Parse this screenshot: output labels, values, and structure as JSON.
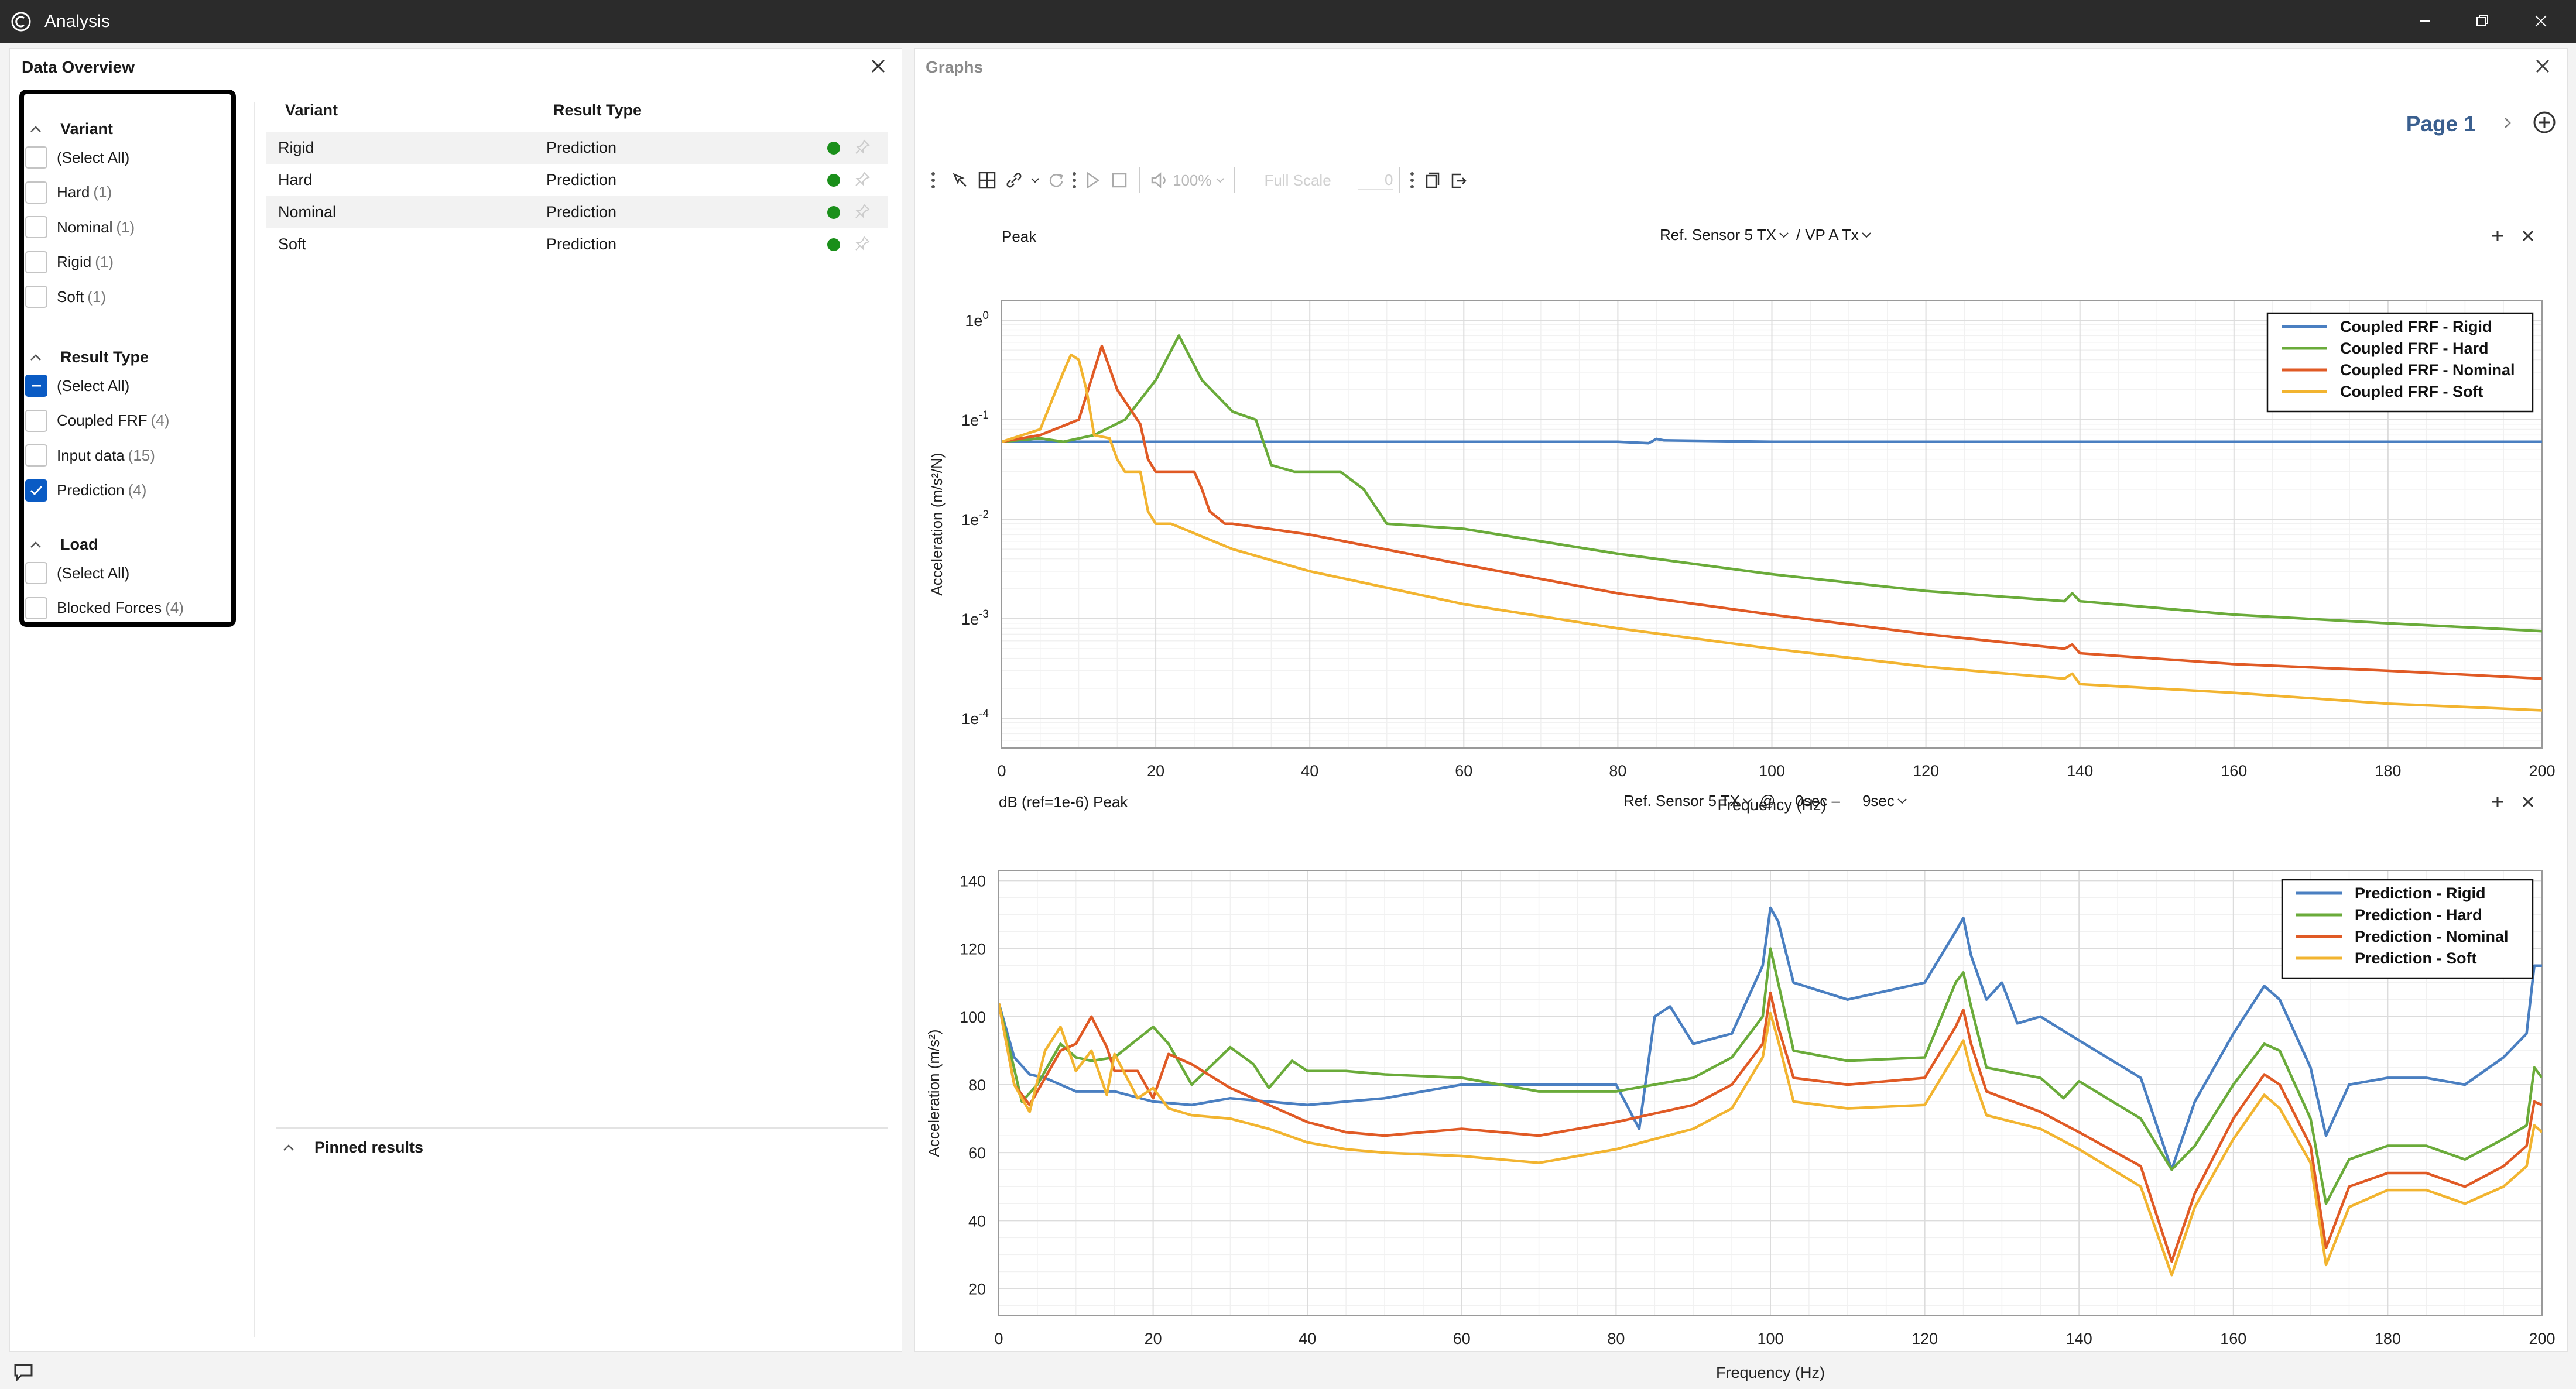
{
  "window": {
    "title": "Analysis"
  },
  "data_overview": {
    "title": "Data Overview",
    "sections": [
      {
        "title": "Variant",
        "items": [
          {
            "label": "(Select All)",
            "count": "",
            "state": "unchecked"
          },
          {
            "label": "Hard",
            "count": "(1)",
            "state": "unchecked"
          },
          {
            "label": "Nominal",
            "count": "(1)",
            "state": "unchecked"
          },
          {
            "label": "Rigid",
            "count": "(1)",
            "state": "unchecked"
          },
          {
            "label": "Soft",
            "count": "(1)",
            "state": "unchecked"
          }
        ]
      },
      {
        "title": "Result Type",
        "items": [
          {
            "label": "(Select All)",
            "count": "",
            "state": "partial"
          },
          {
            "label": "Coupled FRF",
            "count": "(4)",
            "state": "unchecked"
          },
          {
            "label": "Input data",
            "count": "(15)",
            "state": "unchecked"
          },
          {
            "label": "Prediction",
            "count": "(4)",
            "state": "checked"
          }
        ]
      },
      {
        "title": "Load",
        "items": [
          {
            "label": "(Select All)",
            "count": "",
            "state": "unchecked"
          },
          {
            "label": "Blocked Forces",
            "count": "(4)",
            "state": "unchecked"
          }
        ]
      }
    ],
    "table": {
      "headers": [
        "Variant",
        "Result Type"
      ],
      "rows": [
        {
          "variant": "Rigid",
          "type": "Prediction",
          "status": "#1a8f1a"
        },
        {
          "variant": "Hard",
          "type": "Prediction",
          "status": "#1a8f1a"
        },
        {
          "variant": "Nominal",
          "type": "Prediction",
          "status": "#1a8f1a"
        },
        {
          "variant": "Soft",
          "type": "Prediction",
          "status": "#1a8f1a"
        }
      ]
    },
    "pinned_label": "Pinned results"
  },
  "graphs": {
    "title": "Graphs",
    "page_label": "Page 1",
    "toolbar": {
      "zoom": "100%",
      "scale_label": "Full Scale",
      "scale_value": "0"
    }
  },
  "chart_data": [
    {
      "type": "line",
      "title": "Peak",
      "selector": [
        "Ref. Sensor 5 TX",
        "/",
        "VP A Tx"
      ],
      "xlabel": "Frequency (Hz)",
      "ylabel": "Acceleration (m/s²/N)",
      "xlim": [
        0,
        200
      ],
      "ylim_log10": [
        -4.3,
        0.2
      ],
      "y_scale": "log",
      "x_ticks": [
        "0",
        "20",
        "40",
        "60",
        "80",
        "100",
        "120",
        "140",
        "160",
        "180",
        "200"
      ],
      "y_ticks": [
        {
          "mant": "1e",
          "exp": "0",
          "v": 0
        },
        {
          "mant": "1e",
          "exp": "-1",
          "v": -1
        },
        {
          "mant": "1e",
          "exp": "-2",
          "v": -2
        },
        {
          "mant": "1e",
          "exp": "-3",
          "v": -3
        },
        {
          "mant": "1e",
          "exp": "-4",
          "v": -4
        }
      ],
      "grid": true,
      "legend_position": "top-right",
      "colors": [
        "#4a7fc1",
        "#6aab3a",
        "#e05a25",
        "#f2b430"
      ],
      "series": [
        {
          "name": "Coupled FRF - Rigid",
          "x": [
            0,
            20,
            40,
            60,
            80,
            84,
            85,
            86,
            100,
            120,
            140,
            160,
            180,
            200
          ],
          "y": [
            0.06,
            0.06,
            0.06,
            0.06,
            0.06,
            0.058,
            0.064,
            0.062,
            0.06,
            0.06,
            0.06,
            0.06,
            0.06,
            0.06
          ]
        },
        {
          "name": "Coupled FRF - Hard",
          "x": [
            0,
            5,
            8,
            12,
            16,
            20,
            23,
            26,
            30,
            33,
            35,
            38,
            44,
            47,
            50,
            60,
            80,
            100,
            120,
            138,
            139,
            140,
            160,
            180,
            200
          ],
          "y": [
            0.06,
            0.065,
            0.06,
            0.07,
            0.1,
            0.25,
            0.7,
            0.25,
            0.12,
            0.1,
            0.035,
            0.03,
            0.03,
            0.02,
            0.009,
            0.008,
            0.0045,
            0.0028,
            0.0019,
            0.0015,
            0.0018,
            0.0015,
            0.0011,
            0.0009,
            0.00075
          ]
        },
        {
          "name": "Coupled FRF - Nominal",
          "x": [
            0,
            5,
            10,
            13,
            15,
            18,
            19,
            20,
            21,
            25,
            26,
            27,
            29,
            30,
            40,
            60,
            80,
            100,
            120,
            138,
            139,
            140,
            160,
            180,
            200
          ],
          "y": [
            0.06,
            0.07,
            0.1,
            0.55,
            0.2,
            0.09,
            0.04,
            0.03,
            0.03,
            0.03,
            0.02,
            0.012,
            0.009,
            0.009,
            0.007,
            0.0035,
            0.0018,
            0.0011,
            0.0007,
            0.0005,
            0.00055,
            0.00045,
            0.00035,
            0.0003,
            0.00025
          ]
        },
        {
          "name": "Coupled FRF - Soft",
          "x": [
            0,
            5,
            8,
            9,
            10,
            11,
            12,
            14,
            15,
            16,
            17,
            18,
            19,
            20,
            22,
            30,
            40,
            60,
            80,
            100,
            120,
            138,
            139,
            140,
            160,
            180,
            200
          ],
          "y": [
            0.06,
            0.08,
            0.3,
            0.45,
            0.4,
            0.2,
            0.07,
            0.065,
            0.04,
            0.03,
            0.03,
            0.03,
            0.012,
            0.009,
            0.009,
            0.005,
            0.003,
            0.0014,
            0.0008,
            0.0005,
            0.00033,
            0.00025,
            0.00028,
            0.00022,
            0.00018,
            0.00014,
            0.00012
          ]
        }
      ]
    },
    {
      "type": "line",
      "title": "dB (ref=1e-6) Peak",
      "selector": [
        "Ref. Sensor 5 TX",
        "@",
        "0sec –",
        "9sec"
      ],
      "xlabel": "Frequency (Hz)",
      "ylabel": "Acceleration (m/s²)",
      "xlim": [
        0,
        200
      ],
      "ylim": [
        12,
        143
      ],
      "x_ticks": [
        "0",
        "20",
        "40",
        "60",
        "80",
        "100",
        "120",
        "140",
        "160",
        "180",
        "200"
      ],
      "y_ticks": [
        "20",
        "40",
        "60",
        "80",
        "100",
        "120",
        "140"
      ],
      "grid": true,
      "legend_position": "top-right",
      "colors": [
        "#4a7fc1",
        "#6aab3a",
        "#e05a25",
        "#f2b430"
      ],
      "series": [
        {
          "name": "Prediction - Rigid",
          "x": [
            0,
            2,
            4,
            6,
            8,
            10,
            15,
            20,
            25,
            30,
            40,
            50,
            60,
            70,
            80,
            83,
            85,
            87,
            90,
            95,
            99,
            100,
            101,
            103,
            110,
            120,
            124,
            125,
            126,
            128,
            130,
            132,
            135,
            140,
            148,
            152,
            155,
            160,
            164,
            166,
            170,
            172,
            175,
            180,
            185,
            190,
            195,
            198,
            199,
            200
          ],
          "y": [
            104,
            88,
            83,
            82,
            80,
            78,
            78,
            75,
            74,
            76,
            74,
            76,
            80,
            80,
            80,
            67,
            100,
            103,
            92,
            95,
            115,
            132,
            128,
            110,
            105,
            110,
            125,
            129,
            118,
            105,
            110,
            98,
            100,
            93,
            82,
            55,
            75,
            95,
            109,
            105,
            85,
            65,
            80,
            82,
            82,
            80,
            88,
            95,
            115,
            115
          ]
        },
        {
          "name": "Prediction - Hard",
          "x": [
            0,
            3,
            5,
            8,
            10,
            12,
            15,
            20,
            22,
            25,
            30,
            33,
            35,
            38,
            40,
            45,
            50,
            60,
            70,
            80,
            90,
            95,
            99,
            100,
            101,
            103,
            110,
            120,
            124,
            125,
            126,
            128,
            135,
            138,
            140,
            148,
            152,
            155,
            160,
            164,
            166,
            170,
            172,
            175,
            180,
            185,
            190,
            195,
            198,
            199,
            200
          ],
          "y": [
            104,
            75,
            80,
            92,
            88,
            87,
            88,
            97,
            92,
            80,
            91,
            86,
            79,
            87,
            84,
            84,
            83,
            82,
            78,
            78,
            82,
            88,
            100,
            120,
            110,
            90,
            87,
            88,
            110,
            113,
            103,
            85,
            82,
            76,
            81,
            70,
            55,
            62,
            80,
            92,
            90,
            70,
            45,
            58,
            62,
            62,
            58,
            64,
            68,
            85,
            82
          ]
        },
        {
          "name": "Prediction - Nominal",
          "x": [
            0,
            2,
            4,
            6,
            8,
            10,
            12,
            14,
            15,
            18,
            20,
            22,
            25,
            30,
            35,
            40,
            45,
            50,
            60,
            70,
            80,
            90,
            95,
            99,
            100,
            101,
            103,
            110,
            120,
            124,
            125,
            126,
            128,
            135,
            140,
            148,
            152,
            155,
            160,
            164,
            166,
            170,
            172,
            175,
            180,
            185,
            190,
            195,
            198,
            199,
            200
          ],
          "y": [
            104,
            80,
            74,
            82,
            90,
            92,
            100,
            91,
            84,
            84,
            76,
            89,
            86,
            79,
            74,
            69,
            66,
            65,
            67,
            65,
            69,
            74,
            80,
            92,
            107,
            97,
            82,
            80,
            82,
            97,
            102,
            92,
            78,
            72,
            66,
            56,
            28,
            48,
            70,
            83,
            80,
            62,
            32,
            50,
            54,
            54,
            50,
            56,
            62,
            75,
            74
          ]
        },
        {
          "name": "Prediction - Soft",
          "x": [
            0,
            2,
            4,
            6,
            8,
            10,
            12,
            14,
            15,
            18,
            20,
            22,
            25,
            30,
            35,
            40,
            45,
            50,
            60,
            70,
            80,
            90,
            95,
            99,
            100,
            101,
            103,
            110,
            120,
            124,
            125,
            126,
            128,
            135,
            140,
            148,
            152,
            155,
            160,
            164,
            166,
            170,
            172,
            175,
            180,
            185,
            190,
            195,
            198,
            199,
            200
          ],
          "y": [
            104,
            80,
            72,
            90,
            97,
            84,
            90,
            77,
            89,
            76,
            79,
            73,
            71,
            70,
            67,
            63,
            61,
            60,
            59,
            57,
            61,
            67,
            73,
            88,
            101,
            93,
            75,
            73,
            74,
            89,
            93,
            84,
            71,
            67,
            61,
            50,
            24,
            44,
            64,
            77,
            73,
            57,
            27,
            44,
            49,
            49,
            45,
            50,
            56,
            68,
            66
          ]
        }
      ]
    }
  ]
}
